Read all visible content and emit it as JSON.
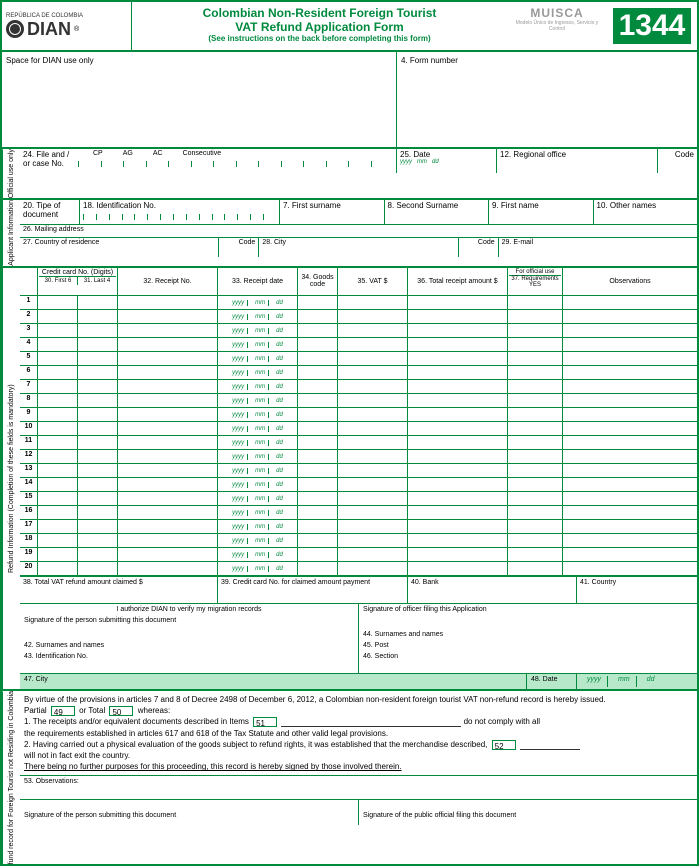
{
  "header": {
    "republica": "REPÚBLICA DE COLOMBIA",
    "dian": "DIAN",
    "reg": "®",
    "title1": "Colombian Non-Resident Foreign Tourist",
    "title2": "VAT Refund Application Form",
    "subtitle": "(See instructions on the back before completing this form)",
    "muisca": "MUISCA",
    "muisca_sub": "Modelo Único de Ingresos, Servicio y Control",
    "form_number": "1344"
  },
  "dian_space": {
    "left": "Space for DIAN use only",
    "right": "4. Form number"
  },
  "official": {
    "side": "Official use only",
    "f24": "24. File and / or case No.",
    "cp": "CP",
    "ag": "AG",
    "ac": "AC",
    "consec": "Consecutive",
    "f25": "25. Date",
    "yyyy": "yyyy",
    "mm": "mm",
    "dd": "dd",
    "f12": "12. Regional office",
    "code": "Code"
  },
  "applicant": {
    "side": "Applicant Information",
    "f20": "20. Tipe of document",
    "f18": "18. Identification No.",
    "f7": "7. First surname",
    "f8": "8. Second Surname",
    "f9": "9. First name",
    "f10": "10. Other names",
    "f26": "26. Mailing address",
    "f27": "27. Country of residence",
    "code": "Code",
    "f28": "28. City",
    "f29": "29. E-mail"
  },
  "refund": {
    "side": "Refund Information (Completion of these fields is mandatory)",
    "cc_head": "Credit card No. (Digits)",
    "cc_30": "30. First 6",
    "cc_31": "31. Last 4",
    "h32": "32. Receipt No.",
    "h33": "33. Receipt date",
    "h34": "34. Goods code",
    "h35": "35. VAT $",
    "h36": "36. Total receipt amount $",
    "h_official": "For official use",
    "h37": "37. Requirements YES",
    "h_obs": "Observations",
    "yyyy": "yyyy",
    "mm": "mm",
    "dd": "dd",
    "rows": [
      "1",
      "2",
      "3",
      "4",
      "5",
      "6",
      "7",
      "8",
      "9",
      "10",
      "11",
      "12",
      "13",
      "14",
      "15",
      "16",
      "17",
      "18",
      "19",
      "20"
    ],
    "f38": "38. Total VAT refund amount claimed $",
    "f39": "39. Credit card No. for claimed amount payment",
    "f40": "40. Bank",
    "f41": "41. Country"
  },
  "signatures": {
    "auth": "I authorize DIAN to verify my migration records",
    "sig_person": "Signature of the person submitting this document",
    "f42": "42. Surnames and names",
    "f43": "43. Identification No.",
    "sig_officer": "Signature of officer filing this Application",
    "f44": "44. Surnames and names",
    "f45": "45. Post",
    "f46": "46. Section",
    "f47": "47. City",
    "f48": "48. Date"
  },
  "nonrefund": {
    "side": "fund record for Foreign Tourist not Residing in Colombia",
    "line1": "By virtue of the provisions in articles 7 and 8 of Decree 2498 of December 6, 2012, a Colombian non-resident foreign tourist VAT non-refund record is hereby issued.",
    "partial": "Partial",
    "n49": "49",
    "ortotal": "or Total",
    "n50": "50",
    "whereas": "whereas:",
    "line2a": "1. The receipts and/or equivalent documents described in Items",
    "n51": "51",
    "line2b": "do not comply with all",
    "line3": "the requirements established in articles 617 and 618 of the Tax Statute and other valid legal provisions.",
    "line4a": "2. Having carried out a physical evaluation of the goods subject to refund rights, it was established that the merchandise described,",
    "n52": "52",
    "line5": "will not in fact exit the country.",
    "line6": "There being no further purposes for this proceeding, this record is hereby signed by those involved therein.",
    "f53": "53. Observations:",
    "sig1": "Signature of the person submitting this document",
    "sig2": "Signature of the public official filing this document"
  }
}
